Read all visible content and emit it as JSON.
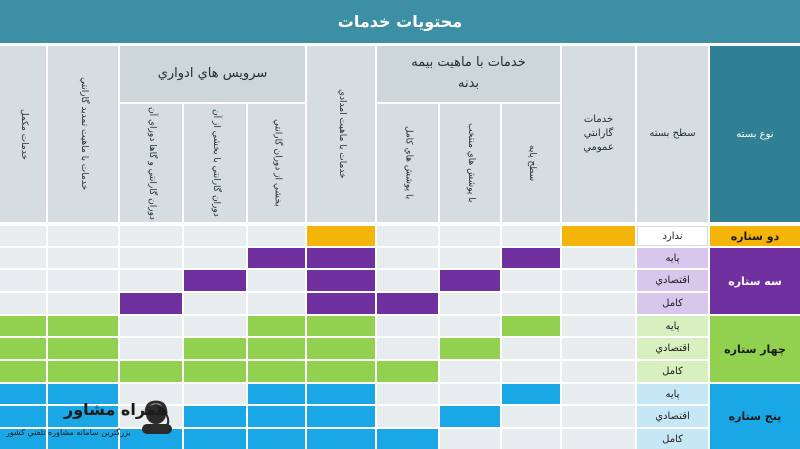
{
  "title": "محتويات خدمات",
  "headers": {
    "package_type": "نوع بسته",
    "package_level": "سطح بسته",
    "general_warranty": "خدمات گارانتي عمومي",
    "insurance_group": "خدمات با ماهيت بيمه بدنه",
    "base_level": "سطح پايه",
    "selective_coverage": "با پوشش هاي منتخب",
    "full_coverage": "با پوشش هاي کامل",
    "emergency_services": "خدمات با ماهيت امدادي",
    "periodic_group": "سرويس هاي ادواري",
    "warranty_part": "بخشي از دوران گارانتي",
    "warranty_part_after": "دوران گارانتي با بخشي از آن",
    "warranty_full_after": "دوران گارانتي و گاها دوراي آن",
    "extended_warranty": "خدمات با ماهيت تمديد گارانتي",
    "complementary": "خدمات مکمل"
  },
  "rows": [
    {
      "package": "دو ستاره",
      "level": "ندارد"
    },
    {
      "package": "سه ستاره",
      "levels": [
        "پايه",
        "اقتصادي",
        "کامل"
      ]
    },
    {
      "package": "چهار ستاره",
      "levels": [
        "پايه",
        "اقتصادي",
        "کامل"
      ]
    },
    {
      "package": "پنج ستاره",
      "levels": [
        "پايه",
        "اقتصادي",
        "کامل"
      ]
    }
  ],
  "logo": {
    "brand": "همراه مشاور",
    "tagline": "بزرگترين سامانه مشاوره تلفني کشور"
  },
  "colors": {
    "title_bar": "#3d8fa3",
    "header_dark": "#2f7f95",
    "header_light": "#d6dde1",
    "two_star": "#f5b40a",
    "three_star": "#7030a0",
    "four_star": "#92d050",
    "five_star": "#1aa7e5",
    "empty": "#e7ecee"
  }
}
